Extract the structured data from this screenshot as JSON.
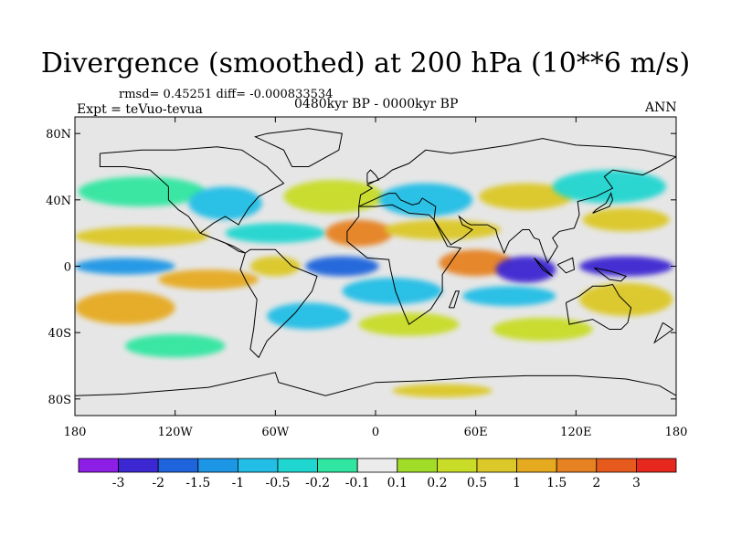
{
  "title": "Divergence (smoothed) at 200 hPa (10**6 m/s)",
  "stats_line": "rmsd= 0.45251 diff= -0.000833534",
  "experiment_label": "Expt = teVuo-tevua",
  "period_label": "0480kyr BP - 0000kyr BP",
  "season_label": "ANN",
  "map": {
    "projection": "cylindrical equidistant",
    "lon_range": [
      -180,
      180
    ],
    "lat_range": [
      -90,
      90
    ],
    "background_color": "#e6e6e6",
    "coastline_color": "#000000"
  },
  "axes": {
    "y_ticks": [
      {
        "lat": 80,
        "label": "80N"
      },
      {
        "lat": 40,
        "label": "40N"
      },
      {
        "lat": 0,
        "label": "0"
      },
      {
        "lat": -40,
        "label": "40S"
      },
      {
        "lat": -80,
        "label": "80S"
      }
    ],
    "x_ticks": [
      {
        "lon": -180,
        "label": "180"
      },
      {
        "lon": -120,
        "label": "120W"
      },
      {
        "lon": -60,
        "label": "60W"
      },
      {
        "lon": 0,
        "label": "0"
      },
      {
        "lon": 60,
        "label": "60E"
      },
      {
        "lon": 120,
        "label": "120E"
      },
      {
        "lon": 180,
        "label": "180"
      }
    ]
  },
  "colorbar": {
    "colors": [
      "#8c1ee6",
      "#3c28d2",
      "#1e64dc",
      "#1e96e6",
      "#22bee6",
      "#20d6d0",
      "#30e6a0",
      "#ececec",
      "#a0dc28",
      "#c8dc28",
      "#dcc828",
      "#e6aa20",
      "#e68222",
      "#e65a1e",
      "#e6281e"
    ],
    "labels": [
      "-3",
      "-2",
      "-1.5",
      "-1",
      "-0.5",
      "-0.2",
      "-0.1",
      "0.1",
      "0.2",
      "0.5",
      "1",
      "1.5",
      "2",
      "3"
    ]
  },
  "field_blobs": [
    {
      "lon": -140,
      "lat": 45,
      "rx": 38,
      "ry": 9,
      "level": "-0.1"
    },
    {
      "lon": -90,
      "lat": 38,
      "rx": 22,
      "ry": 10,
      "level": "-0.5"
    },
    {
      "lon": -25,
      "lat": 42,
      "rx": 30,
      "ry": 10,
      "level": "0.2"
    },
    {
      "lon": 30,
      "lat": 40,
      "rx": 28,
      "ry": 10,
      "level": "-0.5"
    },
    {
      "lon": 90,
      "lat": 42,
      "rx": 28,
      "ry": 8,
      "level": "0.5"
    },
    {
      "lon": 140,
      "lat": 48,
      "rx": 34,
      "ry": 10,
      "level": "-0.2"
    },
    {
      "lon": 150,
      "lat": 28,
      "rx": 26,
      "ry": 7,
      "level": "0.5"
    },
    {
      "lon": -140,
      "lat": 18,
      "rx": 40,
      "ry": 6,
      "level": "0.5"
    },
    {
      "lon": -60,
      "lat": 20,
      "rx": 30,
      "ry": 6,
      "level": "-0.2"
    },
    {
      "lon": -10,
      "lat": 20,
      "rx": 20,
      "ry": 8,
      "level": "1.5"
    },
    {
      "lon": 40,
      "lat": 22,
      "rx": 35,
      "ry": 6,
      "level": "0.5"
    },
    {
      "lon": -150,
      "lat": 0,
      "rx": 30,
      "ry": 5,
      "level": "-1"
    },
    {
      "lon": -60,
      "lat": 0,
      "rx": 15,
      "ry": 6,
      "level": "0.5"
    },
    {
      "lon": -20,
      "lat": 0,
      "rx": 22,
      "ry": 6,
      "level": "-1.5"
    },
    {
      "lon": 60,
      "lat": 2,
      "rx": 22,
      "ry": 8,
      "level": "1.5"
    },
    {
      "lon": 90,
      "lat": -2,
      "rx": 18,
      "ry": 8,
      "level": "-2"
    },
    {
      "lon": 150,
      "lat": 0,
      "rx": 28,
      "ry": 6,
      "level": "-2"
    },
    {
      "lon": -100,
      "lat": -8,
      "rx": 30,
      "ry": 6,
      "level": "1"
    },
    {
      "lon": 10,
      "lat": -15,
      "rx": 30,
      "ry": 8,
      "level": "-0.5"
    },
    {
      "lon": 80,
      "lat": -18,
      "rx": 28,
      "ry": 6,
      "level": "-0.5"
    },
    {
      "lon": 150,
      "lat": -20,
      "rx": 28,
      "ry": 10,
      "level": "0.5"
    },
    {
      "lon": -150,
      "lat": -25,
      "rx": 30,
      "ry": 10,
      "level": "1"
    },
    {
      "lon": -40,
      "lat": -30,
      "rx": 25,
      "ry": 8,
      "level": "-0.5"
    },
    {
      "lon": 20,
      "lat": -35,
      "rx": 30,
      "ry": 7,
      "level": "0.2"
    },
    {
      "lon": 100,
      "lat": -38,
      "rx": 30,
      "ry": 7,
      "level": "0.2"
    },
    {
      "lon": -120,
      "lat": -48,
      "rx": 30,
      "ry": 7,
      "level": "-0.1"
    },
    {
      "lon": 40,
      "lat": -75,
      "rx": 30,
      "ry": 4,
      "level": "0.5"
    }
  ],
  "land_outlines": [
    [
      [
        -165,
        68
      ],
      [
        -140,
        70
      ],
      [
        -120,
        70
      ],
      [
        -95,
        72
      ],
      [
        -80,
        70
      ],
      [
        -65,
        60
      ],
      [
        -55,
        50
      ],
      [
        -70,
        42
      ],
      [
        -76,
        35
      ],
      [
        -81,
        27
      ],
      [
        -82,
        25
      ],
      [
        -90,
        30
      ],
      [
        -97,
        26
      ],
      [
        -105,
        20
      ],
      [
        -95,
        16
      ],
      [
        -85,
        12
      ],
      [
        -78,
        8
      ],
      [
        -82,
        9
      ],
      [
        -90,
        14
      ],
      [
        -105,
        20
      ],
      [
        -112,
        30
      ],
      [
        -118,
        34
      ],
      [
        -124,
        40
      ],
      [
        -124,
        48
      ],
      [
        -135,
        58
      ],
      [
        -150,
        60
      ],
      [
        -165,
        60
      ],
      [
        -165,
        68
      ]
    ],
    [
      [
        -78,
        8
      ],
      [
        -75,
        10
      ],
      [
        -60,
        10
      ],
      [
        -50,
        0
      ],
      [
        -35,
        -6
      ],
      [
        -38,
        -15
      ],
      [
        -48,
        -28
      ],
      [
        -58,
        -38
      ],
      [
        -65,
        -45
      ],
      [
        -70,
        -55
      ],
      [
        -75,
        -50
      ],
      [
        -73,
        -38
      ],
      [
        -71,
        -20
      ],
      [
        -77,
        -10
      ],
      [
        -81,
        -2
      ],
      [
        -78,
        8
      ]
    ],
    [
      [
        -10,
        36
      ],
      [
        0,
        36
      ],
      [
        10,
        37
      ],
      [
        20,
        32
      ],
      [
        32,
        31
      ],
      [
        35,
        28
      ],
      [
        43,
        12
      ],
      [
        51,
        11
      ],
      [
        40,
        -5
      ],
      [
        40,
        -15
      ],
      [
        33,
        -26
      ],
      [
        20,
        -35
      ],
      [
        17,
        -28
      ],
      [
        12,
        -15
      ],
      [
        9,
        -2
      ],
      [
        8,
        4
      ],
      [
        -5,
        5
      ],
      [
        -17,
        15
      ],
      [
        -17,
        21
      ],
      [
        -10,
        30
      ],
      [
        -10,
        36
      ]
    ],
    [
      [
        -10,
        36
      ],
      [
        -9,
        43
      ],
      [
        -2,
        47
      ],
      [
        -5,
        49
      ],
      [
        5,
        54
      ],
      [
        10,
        58
      ],
      [
        20,
        62
      ],
      [
        30,
        70
      ],
      [
        45,
        68
      ],
      [
        60,
        70
      ],
      [
        80,
        73
      ],
      [
        100,
        77
      ],
      [
        120,
        73
      ],
      [
        140,
        72
      ],
      [
        160,
        70
      ],
      [
        180,
        66
      ],
      [
        170,
        60
      ],
      [
        160,
        55
      ],
      [
        142,
        58
      ],
      [
        137,
        54
      ],
      [
        142,
        47
      ],
      [
        132,
        42
      ],
      [
        121,
        39
      ],
      [
        122,
        31
      ],
      [
        119,
        23
      ],
      [
        110,
        21
      ],
      [
        106,
        17
      ],
      [
        109,
        12
      ],
      [
        103,
        2
      ],
      [
        100,
        10
      ],
      [
        98,
        16
      ],
      [
        95,
        17
      ],
      [
        92,
        22
      ],
      [
        88,
        22
      ],
      [
        80,
        15
      ],
      [
        77,
        8
      ],
      [
        73,
        18
      ],
      [
        72,
        22
      ],
      [
        67,
        25
      ],
      [
        57,
        25
      ],
      [
        55,
        26
      ],
      [
        50,
        30
      ],
      [
        52,
        25
      ],
      [
        58,
        22
      ],
      [
        52,
        17
      ],
      [
        45,
        13
      ],
      [
        43,
        16
      ],
      [
        35,
        28
      ],
      [
        36,
        36
      ],
      [
        28,
        41
      ],
      [
        26,
        38
      ],
      [
        22,
        37
      ],
      [
        15,
        40
      ],
      [
        12,
        44
      ],
      [
        8,
        44
      ],
      [
        3,
        42
      ],
      [
        -10,
        36
      ]
    ],
    [
      [
        114,
        -22
      ],
      [
        122,
        -18
      ],
      [
        130,
        -12
      ],
      [
        137,
        -12
      ],
      [
        142,
        -11
      ],
      [
        146,
        -18
      ],
      [
        153,
        -25
      ],
      [
        151,
        -34
      ],
      [
        147,
        -38
      ],
      [
        140,
        -38
      ],
      [
        135,
        -35
      ],
      [
        130,
        -32
      ],
      [
        116,
        -35
      ],
      [
        114,
        -22
      ]
    ],
    [
      [
        -180,
        -78
      ],
      [
        -150,
        -77
      ],
      [
        -100,
        -73
      ],
      [
        -60,
        -64
      ],
      [
        -58,
        -70
      ],
      [
        -30,
        -78
      ],
      [
        0,
        -70
      ],
      [
        30,
        -69
      ],
      [
        60,
        -67
      ],
      [
        90,
        -66
      ],
      [
        120,
        -66
      ],
      [
        150,
        -68
      ],
      [
        170,
        -72
      ],
      [
        180,
        -78
      ]
    ],
    [
      [
        -50,
        60
      ],
      [
        -40,
        60
      ],
      [
        -22,
        70
      ],
      [
        -20,
        80
      ],
      [
        -40,
        83
      ],
      [
        -65,
        80
      ],
      [
        -72,
        78
      ],
      [
        -55,
        70
      ],
      [
        -50,
        60
      ]
    ],
    [
      [
        130,
        32
      ],
      [
        135,
        34
      ],
      [
        140,
        36
      ],
      [
        142,
        40
      ],
      [
        141,
        44
      ],
      [
        138,
        38
      ],
      [
        132,
        34
      ],
      [
        130,
        32
      ]
    ],
    [
      [
        -5,
        50
      ],
      [
        2,
        52
      ],
      [
        0,
        55
      ],
      [
        -3,
        58
      ],
      [
        -5,
        56
      ],
      [
        -5,
        50
      ]
    ],
    [
      [
        95,
        5
      ],
      [
        105,
        -5
      ],
      [
        106,
        -6
      ],
      [
        100,
        -2
      ],
      [
        95,
        5
      ]
    ],
    [
      [
        109,
        1
      ],
      [
        118,
        5
      ],
      [
        119,
        -2
      ],
      [
        114,
        -4
      ],
      [
        109,
        1
      ]
    ],
    [
      [
        131,
        -1
      ],
      [
        141,
        -3
      ],
      [
        150,
        -6
      ],
      [
        147,
        -9
      ],
      [
        140,
        -8
      ],
      [
        131,
        -1
      ]
    ],
    [
      [
        44,
        -25
      ],
      [
        48,
        -15
      ],
      [
        50,
        -15
      ],
      [
        47,
        -25
      ],
      [
        44,
        -25
      ]
    ],
    [
      [
        172,
        -34
      ],
      [
        178,
        -38
      ],
      [
        174,
        -41
      ],
      [
        167,
        -46
      ],
      [
        172,
        -34
      ]
    ]
  ]
}
